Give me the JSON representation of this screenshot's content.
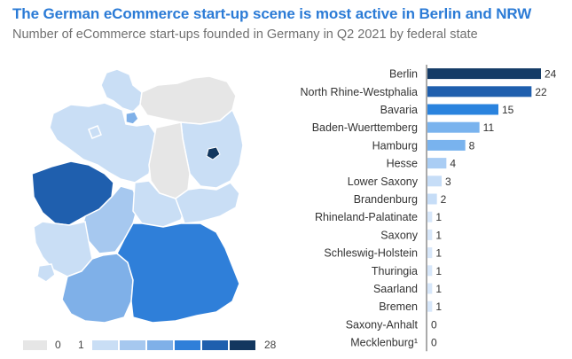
{
  "header": {
    "title": "The German eCommerce start-up scene is most active in Berlin and NRW",
    "subtitle": "Number of eCommerce start-ups founded in Germany in Q2 2021 by federal state"
  },
  "legend": {
    "min_label": "0",
    "low_label": "1",
    "max_label": "28",
    "zero_color": "#e6e6e6",
    "scale_colors": [
      "#c9def5",
      "#a6c8ef",
      "#7fb0e8",
      "#2f7fd9",
      "#1f5fae",
      "#12375f"
    ]
  },
  "chart_data": {
    "type": "bar",
    "orientation": "horizontal",
    "categories": [
      "Berlin",
      "North Rhine-Westphalia",
      "Bavaria",
      "Baden-Wuerttemberg",
      "Hamburg",
      "Hesse",
      "Lower Saxony",
      "Brandenburg",
      "Rhineland-Palatinate",
      "Saxony",
      "Schleswig-Holstein",
      "Thuringia",
      "Saarland",
      "Bremen",
      "Saxony-Anhalt",
      "Mecklenburg¹"
    ],
    "values": [
      24,
      22,
      15,
      11,
      8,
      4,
      3,
      2,
      1,
      1,
      1,
      1,
      1,
      1,
      0,
      0
    ],
    "bar_colors": [
      "#143b66",
      "#1f5fae",
      "#2a83de",
      "#79b3ee",
      "#79b3ee",
      "#a9cdf4",
      "#c6ddf7",
      "#c6ddf7",
      "#d7e7fa",
      "#d7e7fa",
      "#d7e7fa",
      "#d7e7fa",
      "#d7e7fa",
      "#d7e7fa",
      "#d7e7fa",
      "#d7e7fa"
    ],
    "xlim": [
      0,
      24
    ]
  }
}
